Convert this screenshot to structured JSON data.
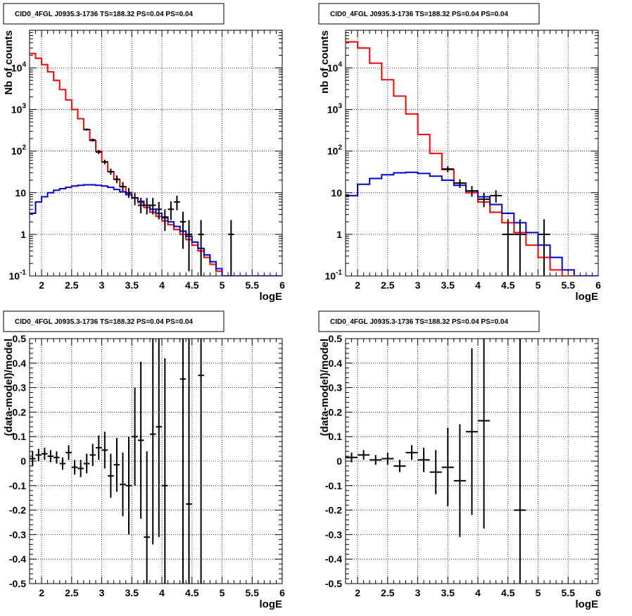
{
  "chart_data": [
    {
      "type": "histogram",
      "title": "CID0_4FGL J0935.3-1736 TS=188.32 PS=0.04 PS=0.04",
      "xlabel": "logE",
      "ylabel": "Nb of counts",
      "xlim": [
        1.8,
        6
      ],
      "ylim": [
        0.1,
        80000
      ],
      "ylog": true,
      "grid": true,
      "xticks": [
        "2",
        "2.5",
        "3",
        "3.5",
        "4",
        "4.5",
        "5",
        "5.5",
        "6"
      ],
      "yticks": [
        "10^-1",
        "1",
        "10",
        "10^2",
        "10^3",
        "10^4"
      ],
      "series": [
        {
          "kind": "step",
          "color": "#ff0000",
          "edges": [
            1.8,
            1.9,
            2.0,
            2.1,
            2.2,
            2.3,
            2.4,
            2.5,
            2.6,
            2.7,
            2.8,
            2.9,
            3.0,
            3.1,
            3.2,
            3.3,
            3.4,
            3.5,
            3.6,
            3.7,
            3.8,
            3.9,
            4.0,
            4.1,
            4.2,
            4.3,
            4.4,
            4.5,
            4.6,
            4.7,
            4.8,
            4.9,
            5.0,
            5.1,
            5.2,
            5.3,
            5.4,
            5.5,
            5.6,
            5.7,
            5.8,
            5.9,
            6.0
          ],
          "values": [
            22000,
            17000,
            12000,
            8000,
            5000,
            3000,
            1700,
            1000,
            600,
            330,
            180,
            100,
            55,
            32,
            21,
            14,
            10,
            7.5,
            5.8,
            4.4,
            3.4,
            2.7,
            2.1,
            1.7,
            1.3,
            1.0,
            0.75,
            0.55,
            0.4,
            0.28,
            0.19,
            0.13,
            0.1,
            0.1,
            0.1,
            0.1,
            0.1,
            0.1,
            0.1,
            0.1,
            0.1,
            0.1
          ]
        },
        {
          "kind": "step",
          "color": "#0000cc",
          "edges": [
            1.8,
            1.9,
            2.0,
            2.1,
            2.2,
            2.3,
            2.4,
            2.5,
            2.6,
            2.7,
            2.8,
            2.9,
            3.0,
            3.1,
            3.2,
            3.3,
            3.4,
            3.5,
            3.6,
            3.7,
            3.8,
            3.9,
            4.0,
            4.1,
            4.2,
            4.3,
            4.4,
            4.5,
            4.6,
            4.7,
            4.8,
            4.9,
            5.0,
            5.1,
            5.2,
            5.3,
            5.4,
            5.5,
            5.6,
            5.7,
            5.8,
            5.9,
            6.0
          ],
          "values": [
            3.2,
            6.0,
            8.0,
            10.0,
            11.5,
            12.5,
            13.5,
            14.5,
            15.0,
            15.5,
            15.5,
            15.0,
            14.5,
            13.5,
            12.0,
            10.5,
            9.0,
            7.5,
            6.2,
            5.0,
            4.0,
            3.2,
            2.6,
            2.0,
            1.55,
            1.2,
            0.9,
            0.65,
            0.46,
            0.32,
            0.22,
            0.15,
            0.1,
            0.1,
            0.1,
            0.1,
            0.1,
            0.1,
            0.1,
            0.1,
            0.1,
            0.1
          ]
        },
        {
          "kind": "points",
          "color": "#000000",
          "points": [
            {
              "x": 2.75,
              "y": 330,
              "xerr": 0.05,
              "ylo": 310,
              "yhi": 350
            },
            {
              "x": 2.85,
              "y": 185,
              "xerr": 0.05,
              "ylo": 170,
              "yhi": 200
            },
            {
              "x": 2.95,
              "y": 95,
              "xerr": 0.05,
              "ylo": 85,
              "yhi": 106
            },
            {
              "x": 3.05,
              "y": 55,
              "xerr": 0.05,
              "ylo": 48,
              "yhi": 62
            },
            {
              "x": 3.15,
              "y": 32,
              "xerr": 0.05,
              "ylo": 27,
              "yhi": 38
            },
            {
              "x": 3.25,
              "y": 21,
              "xerr": 0.05,
              "ylo": 17,
              "yhi": 26
            },
            {
              "x": 3.35,
              "y": 14,
              "xerr": 0.05,
              "ylo": 11,
              "yhi": 18
            },
            {
              "x": 3.45,
              "y": 10,
              "xerr": 0.05,
              "ylo": 7.5,
              "yhi": 13
            },
            {
              "x": 3.55,
              "y": 7.5,
              "xerr": 0.05,
              "ylo": 5,
              "yhi": 10
            },
            {
              "x": 3.65,
              "y": 5,
              "xerr": 0.05,
              "ylo": 3.2,
              "yhi": 7.5
            },
            {
              "x": 3.75,
              "y": 5,
              "xerr": 0.05,
              "ylo": 3.0,
              "yhi": 7.5
            },
            {
              "x": 3.85,
              "y": 5,
              "xerr": 0.05,
              "ylo": 3.0,
              "yhi": 7.5
            },
            {
              "x": 3.95,
              "y": 4,
              "xerr": 0.05,
              "ylo": 2.3,
              "yhi": 6.0
            },
            {
              "x": 4.05,
              "y": 2.5,
              "xerr": 0.05,
              "ylo": 1.2,
              "yhi": 4.0
            },
            {
              "x": 4.15,
              "y": 4,
              "xerr": 0.05,
              "ylo": 2.2,
              "yhi": 6.2
            },
            {
              "x": 4.25,
              "y": 6,
              "xerr": 0.05,
              "ylo": 3.8,
              "yhi": 8.5
            },
            {
              "x": 4.35,
              "y": 2,
              "xerr": 0.05,
              "ylo": 0.45,
              "yhi": 3.5
            },
            {
              "x": 4.45,
              "y": 1,
              "xerr": 0.05,
              "ylo": 0.13,
              "yhi": 2.2
            },
            {
              "x": 4.65,
              "y": 1,
              "xerr": 0.05,
              "ylo": 0.1,
              "yhi": 2.2
            },
            {
              "x": 5.15,
              "y": 1,
              "xerr": 0.05,
              "ylo": 0.1,
              "yhi": 2.2
            }
          ]
        }
      ]
    },
    {
      "type": "histogram",
      "title": "CID0_4FGL J0935.3-1736 TS=188.32 PS=0.04 PS=0.04",
      "xlabel": "logE",
      "ylabel": "nb of counts",
      "xlim": [
        1.8,
        6
      ],
      "ylim": [
        0.1,
        80000
      ],
      "ylog": true,
      "grid": true,
      "xticks": [
        "2",
        "2.5",
        "3",
        "3.5",
        "4",
        "4.5",
        "5",
        "5.5",
        "6"
      ],
      "yticks": [
        "10^-1",
        "1",
        "10",
        "10^2",
        "10^3",
        "10^4"
      ],
      "series": [
        {
          "kind": "step",
          "color": "#ff0000",
          "edges": [
            1.8,
            2.0,
            2.2,
            2.4,
            2.6,
            2.8,
            3.0,
            3.2,
            3.4,
            3.6,
            3.8,
            4.0,
            4.2,
            4.4,
            4.6,
            4.8,
            5.0,
            5.2,
            5.4,
            5.6,
            5.8,
            6.0
          ],
          "values": [
            42000,
            30000,
            13000,
            5200,
            2100,
            780,
            250,
            88,
            36,
            17,
            10,
            6.0,
            3.4,
            1.9,
            1.1,
            0.55,
            0.28,
            0.14,
            0.1,
            0.1,
            0.1
          ]
        },
        {
          "kind": "step",
          "color": "#0000cc",
          "edges": [
            1.8,
            2.0,
            2.2,
            2.4,
            2.6,
            2.8,
            3.0,
            3.2,
            3.4,
            3.6,
            3.8,
            4.0,
            4.2,
            4.4,
            4.6,
            4.8,
            5.0,
            5.2,
            5.4,
            5.6,
            5.8,
            6.0
          ],
          "values": [
            8.5,
            16,
            22,
            27,
            30,
            31,
            29,
            25,
            20,
            15,
            11,
            8,
            5.2,
            3.2,
            1.9,
            1.1,
            0.55,
            0.28,
            0.14,
            0.1,
            0.1
          ]
        },
        {
          "kind": "points",
          "color": "#000000",
          "points": [
            {
              "x": 3.5,
              "y": 37,
              "xerr": 0.1,
              "ylo": 31,
              "yhi": 43
            },
            {
              "x": 3.7,
              "y": 17,
              "xerr": 0.1,
              "ylo": 13,
              "yhi": 21
            },
            {
              "x": 3.9,
              "y": 11,
              "xerr": 0.1,
              "ylo": 8,
              "yhi": 14.5
            },
            {
              "x": 4.1,
              "y": 7,
              "xerr": 0.1,
              "ylo": 4.5,
              "yhi": 10
            },
            {
              "x": 4.3,
              "y": 8.5,
              "xerr": 0.1,
              "ylo": 5.8,
              "yhi": 11.5
            },
            {
              "x": 4.5,
              "y": 1,
              "xerr": 0.1,
              "ylo": 0.1,
              "yhi": 2.3
            },
            {
              "x": 4.7,
              "y": 1,
              "xerr": 0.1,
              "ylo": 0.1,
              "yhi": 2.3
            },
            {
              "x": 5.1,
              "y": 1,
              "xerr": 0.1,
              "ylo": 0.1,
              "yhi": 2.3
            }
          ]
        }
      ]
    },
    {
      "type": "scatter",
      "title": "CID0_4FGL J0935.3-1736 TS=188.32 PS=0.04 PS=0.04",
      "xlabel": "logE",
      "ylabel": "(data-model)/model",
      "xlim": [
        1.8,
        6
      ],
      "ylim": [
        -0.5,
        0.5
      ],
      "grid": true,
      "xticks": [
        "2",
        "2.5",
        "3",
        "3.5",
        "4",
        "4.5",
        "5",
        "5.5",
        "6"
      ],
      "yticks": [
        "-0.5",
        "-0.4",
        "-0.3",
        "-0.2",
        "-0.1",
        "0",
        "0.1",
        "0.2",
        "0.3",
        "0.4",
        "0.5"
      ],
      "points": [
        {
          "x": 1.85,
          "y": 0.01,
          "xerr": 0.05,
          "err": 0.03
        },
        {
          "x": 1.95,
          "y": 0.025,
          "xerr": 0.05,
          "err": 0.025
        },
        {
          "x": 2.05,
          "y": 0.03,
          "xerr": 0.05,
          "err": 0.025
        },
        {
          "x": 2.15,
          "y": 0.02,
          "xerr": 0.05,
          "err": 0.025
        },
        {
          "x": 2.25,
          "y": 0.015,
          "xerr": 0.05,
          "err": 0.025
        },
        {
          "x": 2.35,
          "y": -0.01,
          "xerr": 0.05,
          "err": 0.025
        },
        {
          "x": 2.45,
          "y": 0.035,
          "xerr": 0.05,
          "err": 0.03
        },
        {
          "x": 2.55,
          "y": -0.025,
          "xerr": 0.05,
          "err": 0.03
        },
        {
          "x": 2.65,
          "y": -0.03,
          "xerr": 0.05,
          "err": 0.035
        },
        {
          "x": 2.75,
          "y": -0.01,
          "xerr": 0.05,
          "err": 0.04
        },
        {
          "x": 2.85,
          "y": 0.025,
          "xerr": 0.05,
          "err": 0.045
        },
        {
          "x": 2.95,
          "y": 0.055,
          "xerr": 0.05,
          "err": 0.05
        },
        {
          "x": 3.05,
          "y": 0.045,
          "xerr": 0.05,
          "err": 0.075
        },
        {
          "x": 3.15,
          "y": -0.06,
          "xerr": 0.05,
          "err": 0.09
        },
        {
          "x": 3.25,
          "y": -0.015,
          "xerr": 0.05,
          "err": 0.11
        },
        {
          "x": 3.35,
          "y": -0.095,
          "xerr": 0.05,
          "err": 0.13
        },
        {
          "x": 3.45,
          "y": -0.1,
          "xerr": 0.05,
          "err": 0.2
        },
        {
          "x": 3.55,
          "y": 0.1,
          "xerr": 0.05,
          "err": 0.2
        },
        {
          "x": 3.65,
          "y": 0.085,
          "xerr": 0.05,
          "err": 0.32
        },
        {
          "x": 3.75,
          "y": -0.31,
          "xerr": 0.05,
          "err": 0.35
        },
        {
          "x": 3.85,
          "y": 0.11,
          "xerr": 0.05,
          "err": 0.45
        },
        {
          "x": 3.95,
          "y": 0.14,
          "xerr": 0.05,
          "err": 0.45
        },
        {
          "x": 4.05,
          "y": -0.1,
          "xerr": 0.05,
          "err": 0.52
        },
        {
          "x": 4.35,
          "y": 0.335,
          "xerr": 0.05,
          "err": 0.9
        },
        {
          "x": 4.45,
          "y": -0.175,
          "xerr": 0.05,
          "err": 0.9
        },
        {
          "x": 4.65,
          "y": 0.35,
          "xerr": 0.05,
          "err": 1.0
        }
      ]
    },
    {
      "type": "scatter",
      "title": "CID0_4FGL J0935.3-1736 TS=188.32 PS=0.04 PS=0.04",
      "xlabel": "logE",
      "ylabel": "(data-model)/model",
      "xlim": [
        1.8,
        6
      ],
      "ylim": [
        -0.5,
        0.5
      ],
      "grid": true,
      "xticks": [
        "2",
        "2.5",
        "3",
        "3.5",
        "4",
        "4.5",
        "5",
        "5.5",
        "6"
      ],
      "yticks": [
        "-0.5",
        "-0.4",
        "-0.3",
        "-0.2",
        "-0.1",
        "0",
        "0.1",
        "0.2",
        "0.3",
        "0.4",
        "0.5"
      ],
      "points": [
        {
          "x": 1.9,
          "y": 0.015,
          "xerr": 0.1,
          "err": 0.02
        },
        {
          "x": 2.1,
          "y": 0.025,
          "xerr": 0.1,
          "err": 0.02
        },
        {
          "x": 2.3,
          "y": 0.005,
          "xerr": 0.1,
          "err": 0.02
        },
        {
          "x": 2.5,
          "y": 0.01,
          "xerr": 0.1,
          "err": 0.025
        },
        {
          "x": 2.7,
          "y": -0.02,
          "xerr": 0.1,
          "err": 0.025
        },
        {
          "x": 2.9,
          "y": 0.035,
          "xerr": 0.1,
          "err": 0.03
        },
        {
          "x": 3.1,
          "y": 0.005,
          "xerr": 0.1,
          "err": 0.05
        },
        {
          "x": 3.3,
          "y": -0.045,
          "xerr": 0.1,
          "err": 0.09
        },
        {
          "x": 3.5,
          "y": -0.025,
          "xerr": 0.1,
          "err": 0.16
        },
        {
          "x": 3.7,
          "y": -0.08,
          "xerr": 0.1,
          "err": 0.23
        },
        {
          "x": 3.9,
          "y": 0.12,
          "xerr": 0.1,
          "err": 0.34
        },
        {
          "x": 4.1,
          "y": 0.165,
          "xerr": 0.1,
          "err": 0.44
        },
        {
          "x": 4.7,
          "y": -0.2,
          "xerr": 0.1,
          "err": 1.0
        }
      ]
    }
  ]
}
